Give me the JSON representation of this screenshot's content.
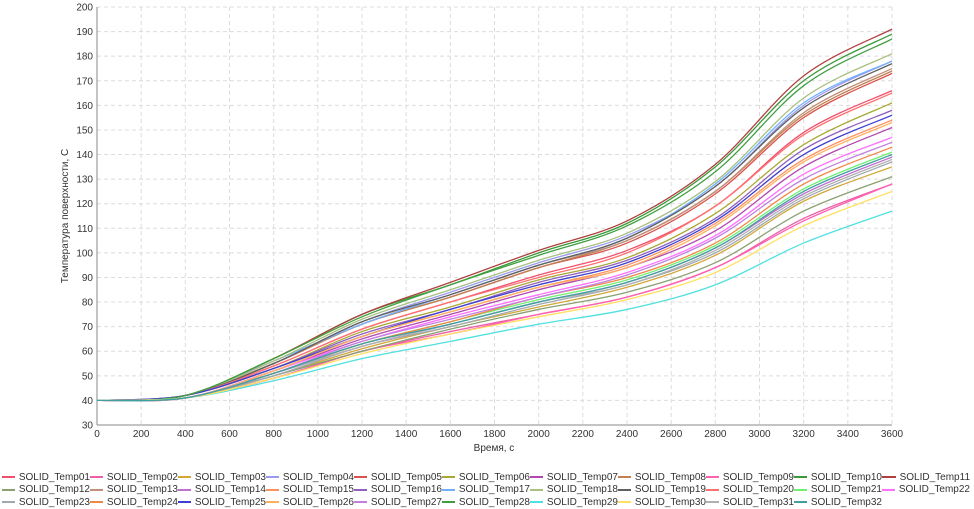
{
  "chart_data": {
    "type": "line",
    "title": "",
    "xlabel": "Время, с",
    "ylabel": "Температура поверхности, С",
    "xlim": [
      0,
      3600
    ],
    "ylim": [
      30,
      200
    ],
    "xticks": [
      0,
      200,
      400,
      600,
      800,
      1000,
      1200,
      1400,
      1600,
      1800,
      2000,
      2200,
      2400,
      2600,
      2800,
      3000,
      3200,
      3400,
      3600
    ],
    "yticks": [
      30,
      40,
      50,
      60,
      70,
      80,
      90,
      100,
      110,
      120,
      130,
      140,
      150,
      160,
      170,
      180,
      190,
      200
    ],
    "grid": true,
    "legend_position": "bottom",
    "x": [
      0,
      400,
      800,
      1200,
      1600,
      2000,
      2400,
      2800,
      3200,
      3600
    ],
    "series": [
      {
        "name": "SOLID_Temp01",
        "color": "#f0506e",
        "values": [
          40,
          42,
          54,
          69,
          80,
          91,
          101,
          119,
          149,
          166
        ]
      },
      {
        "name": "SOLID_Temp02",
        "color": "#ec5fa8",
        "values": [
          40,
          41,
          49,
          60,
          68,
          75,
          82,
          94,
          114,
          128
        ]
      },
      {
        "name": "SOLID_Temp03",
        "color": "#d4a838",
        "values": [
          40,
          41,
          50,
          61,
          70,
          78,
          86,
          99,
          121,
          135
        ]
      },
      {
        "name": "SOLID_Temp04",
        "color": "#9a9af0",
        "values": [
          40,
          42,
          55,
          72,
          84,
          96,
          107,
          127,
          160,
          178
        ]
      },
      {
        "name": "SOLID_Temp05",
        "color": "#d9534f",
        "values": [
          40,
          42,
          55,
          71,
          82,
          94,
          104,
          124,
          155,
          173
        ]
      },
      {
        "name": "SOLID_Temp06",
        "color": "#a8a832",
        "values": [
          40,
          42,
          53,
          68,
          78,
          89,
          98,
          116,
          144,
          161
        ]
      },
      {
        "name": "SOLID_Temp07",
        "color": "#b048b0",
        "values": [
          40,
          41,
          52,
          65,
          75,
          85,
          94,
          109,
          135,
          151
        ]
      },
      {
        "name": "SOLID_Temp08",
        "color": "#c08050",
        "values": [
          40,
          42,
          55,
          71,
          82,
          94,
          105,
          125,
          156,
          174
        ]
      },
      {
        "name": "SOLID_Temp09",
        "color": "#ff60b0",
        "values": [
          40,
          41,
          49,
          60,
          67,
          75,
          82,
          94,
          113,
          128
        ]
      },
      {
        "name": "SOLID_Temp10",
        "color": "#3a9a3a",
        "values": [
          40,
          42,
          57,
          75,
          87,
          100,
          112,
          135,
          170,
          189
        ]
      },
      {
        "name": "SOLID_Temp11",
        "color": "#b04040",
        "values": [
          40,
          42,
          57,
          75,
          88,
          101,
          113,
          136,
          172,
          191
        ]
      },
      {
        "name": "SOLID_Temp12",
        "color": "#8aa070",
        "values": [
          40,
          41,
          50,
          60,
          69,
          77,
          84,
          96,
          117,
          131
        ]
      },
      {
        "name": "SOLID_Temp13",
        "color": "#c0907a",
        "values": [
          40,
          42,
          55,
          71,
          83,
          95,
          105,
          125,
          157,
          175
        ]
      },
      {
        "name": "SOLID_Temp14",
        "color": "#c070d0",
        "values": [
          40,
          41,
          51,
          62,
          71,
          80,
          88,
          102,
          124,
          139
        ]
      },
      {
        "name": "SOLID_Temp15",
        "color": "#ff9060",
        "values": [
          40,
          41,
          52,
          66,
          76,
          86,
          95,
          112,
          138,
          154
        ]
      },
      {
        "name": "SOLID_Temp16",
        "color": "#9060c0",
        "values": [
          40,
          42,
          53,
          67,
          77,
          88,
          97,
          114,
          142,
          158
        ]
      },
      {
        "name": "SOLID_Temp17",
        "color": "#70b0ff",
        "values": [
          40,
          42,
          56,
          71,
          83,
          95,
          106,
          128,
          161,
          178
        ]
      },
      {
        "name": "SOLID_Temp18",
        "color": "#a8c080",
        "values": [
          40,
          42,
          56,
          73,
          85,
          97,
          108,
          129,
          163,
          181
        ]
      },
      {
        "name": "SOLID_Temp19",
        "color": "#606060",
        "values": [
          40,
          42,
          55,
          72,
          83,
          95,
          106,
          127,
          159,
          177
        ]
      },
      {
        "name": "SOLID_Temp20",
        "color": "#ff7070",
        "values": [
          40,
          42,
          54,
          69,
          80,
          90,
          100,
          119,
          148,
          165
        ]
      },
      {
        "name": "SOLID_Temp21",
        "color": "#70f070",
        "values": [
          40,
          41,
          51,
          63,
          72,
          81,
          89,
          103,
          126,
          141
        ]
      },
      {
        "name": "SOLID_Temp22",
        "color": "#ff70ff",
        "values": [
          40,
          41,
          52,
          64,
          74,
          83,
          92,
          107,
          132,
          147
        ]
      },
      {
        "name": "SOLID_Temp23",
        "color": "#a0a8b0",
        "values": [
          40,
          41,
          50,
          62,
          70,
          79,
          87,
          100,
          122,
          137
        ]
      },
      {
        "name": "SOLID_Temp24",
        "color": "#f08848",
        "values": [
          40,
          41,
          51,
          63,
          72,
          82,
          90,
          104,
          128,
          143
        ]
      },
      {
        "name": "SOLID_Temp25",
        "color": "#4040d0",
        "values": [
          40,
          42,
          53,
          66,
          77,
          87,
          96,
          113,
          140,
          156
        ]
      },
      {
        "name": "SOLID_Temp26",
        "color": "#ffb060",
        "values": [
          40,
          41,
          52,
          66,
          76,
          86,
          94,
          111,
          137,
          153
        ]
      },
      {
        "name": "SOLID_Temp27",
        "color": "#c080e0",
        "values": [
          40,
          41,
          51,
          64,
          73,
          82,
          91,
          106,
          130,
          145
        ]
      },
      {
        "name": "SOLID_Temp28",
        "color": "#40a040",
        "values": [
          40,
          42,
          57,
          74,
          87,
          99,
          111,
          133,
          168,
          187
        ]
      },
      {
        "name": "SOLID_Temp29",
        "color": "#50e0e0",
        "values": [
          40,
          41,
          48,
          57,
          64,
          71,
          77,
          87,
          104,
          117
        ]
      },
      {
        "name": "SOLID_Temp30",
        "color": "#ffe060",
        "values": [
          40,
          41,
          49,
          59,
          67,
          74,
          81,
          92,
          111,
          125
        ]
      },
      {
        "name": "SOLID_Temp31",
        "color": "#b0b0b0",
        "values": [
          40,
          41,
          51,
          62,
          71,
          80,
          87,
          101,
          123,
          138
        ]
      },
      {
        "name": "SOLID_Temp32",
        "color": "#40a0a0",
        "values": [
          40,
          41,
          51,
          63,
          71,
          80,
          88,
          102,
          125,
          140
        ]
      }
    ]
  }
}
